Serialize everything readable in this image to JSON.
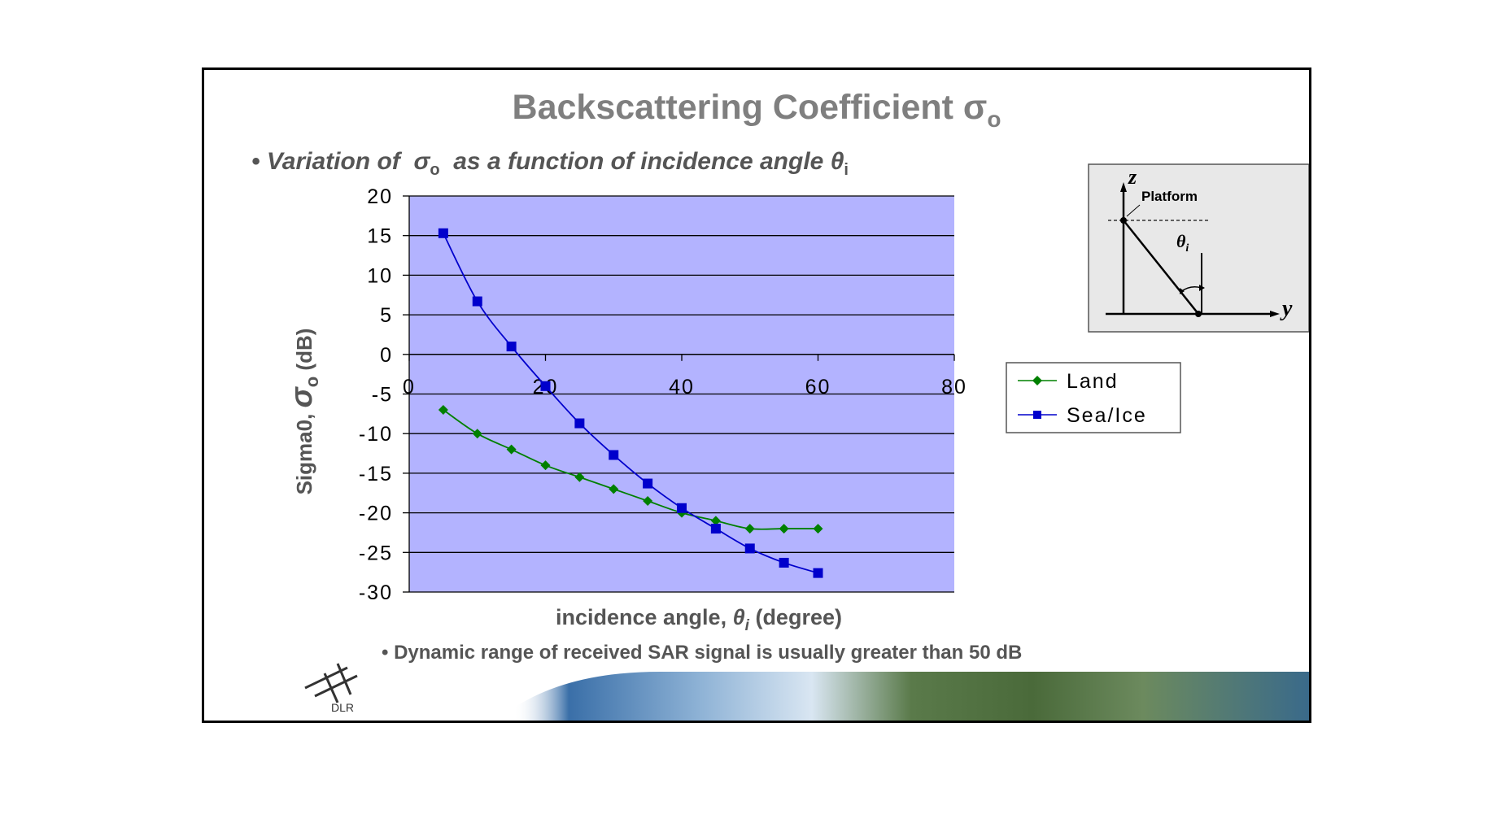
{
  "slide": {
    "title_main": "Backscattering Coefficient σ",
    "title_sub": "o",
    "bullet1_marker": "•",
    "bullet1_text": "Variation of",
    "bullet1_sigma": "σ",
    "bullet1_sigma_sub": "o",
    "bullet1_text2": "as a function of incidence angle",
    "bullet1_theta": "θ",
    "bullet1_theta_sub": "i",
    "bullet2": "• Dynamic range of received SAR signal is usually greater than 50 dB",
    "logo_text": "DLR"
  },
  "diagram": {
    "z_label": "z",
    "y_label": "y",
    "platform_label": "Platform",
    "theta_label": "θ",
    "theta_sub": "i"
  },
  "chart_data": {
    "type": "line",
    "title": "",
    "xlabel_prefix": "incidence angle,",
    "xlabel_symbol": "θ",
    "xlabel_symbol_sub": "i",
    "xlabel_suffix": "(degree)",
    "ylabel_prefix": "Sigma0,",
    "ylabel_symbol": "σ",
    "ylabel_symbol_sub": "o",
    "ylabel_suffix": "(dB)",
    "xlim": [
      0,
      80
    ],
    "ylim": [
      -30,
      20
    ],
    "x_ticks": [
      0,
      20,
      40,
      60,
      80
    ],
    "y_ticks": [
      20,
      15,
      10,
      5,
      0,
      -5,
      -10,
      -15,
      -20,
      -25,
      -30
    ],
    "grid": "horizontal",
    "legend_position": "right",
    "plot_background": "#b3b3ff",
    "series": [
      {
        "name": "Land",
        "color": "#008000",
        "marker": "diamond",
        "x": [
          5,
          10,
          15,
          20,
          25,
          30,
          35,
          40,
          45,
          50,
          55,
          60
        ],
        "y": [
          -7,
          -10,
          -12,
          -14,
          -15.5,
          -17,
          -18.5,
          -20,
          -21,
          -22,
          -22,
          -22
        ]
      },
      {
        "name": "Sea/Ice",
        "color": "#0000cc",
        "marker": "square",
        "x": [
          5,
          10,
          15,
          20,
          25,
          30,
          35,
          40,
          45,
          50,
          55,
          60
        ],
        "y": [
          15.3,
          6.7,
          1,
          -4,
          -8.7,
          -12.7,
          -16.3,
          -19.4,
          -22,
          -24.5,
          -26.3,
          -27.6
        ]
      }
    ]
  }
}
